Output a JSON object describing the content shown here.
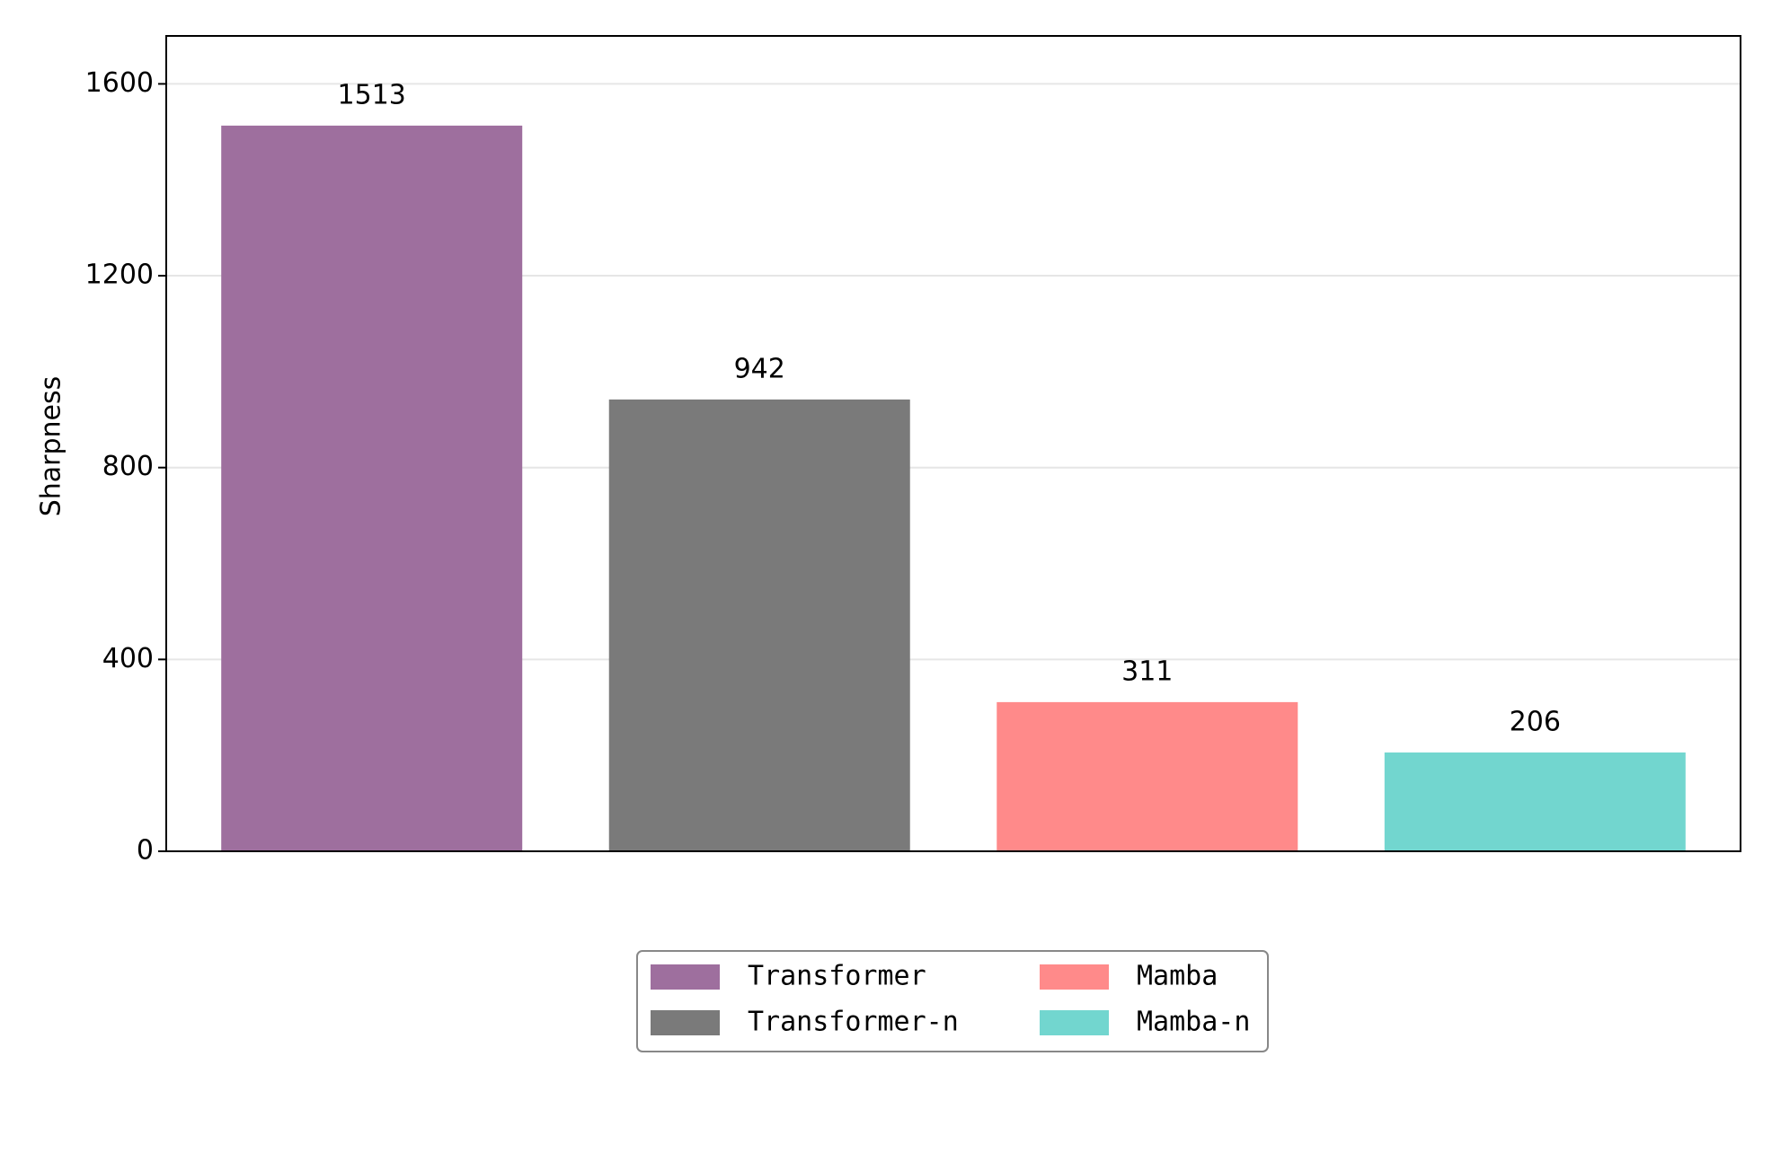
{
  "chart_data": {
    "type": "bar",
    "y_label": "Sharpness",
    "series": [
      {
        "name": "Transformer",
        "color": "#9e6f9e",
        "values": [
          1513
        ]
      },
      {
        "name": "Transformer-n",
        "color": "#7a7a7a",
        "values": [
          942
        ]
      },
      {
        "name": "Mamba",
        "color": "#ff8a8a",
        "values": [
          311
        ]
      },
      {
        "name": "Mamba-n",
        "color": "#72d6cf",
        "values": [
          206
        ]
      }
    ],
    "ylim": [
      0,
      1700
    ],
    "yticks": [
      0,
      400,
      800,
      1200,
      1600
    ],
    "grid": true,
    "legend": "bottom"
  }
}
